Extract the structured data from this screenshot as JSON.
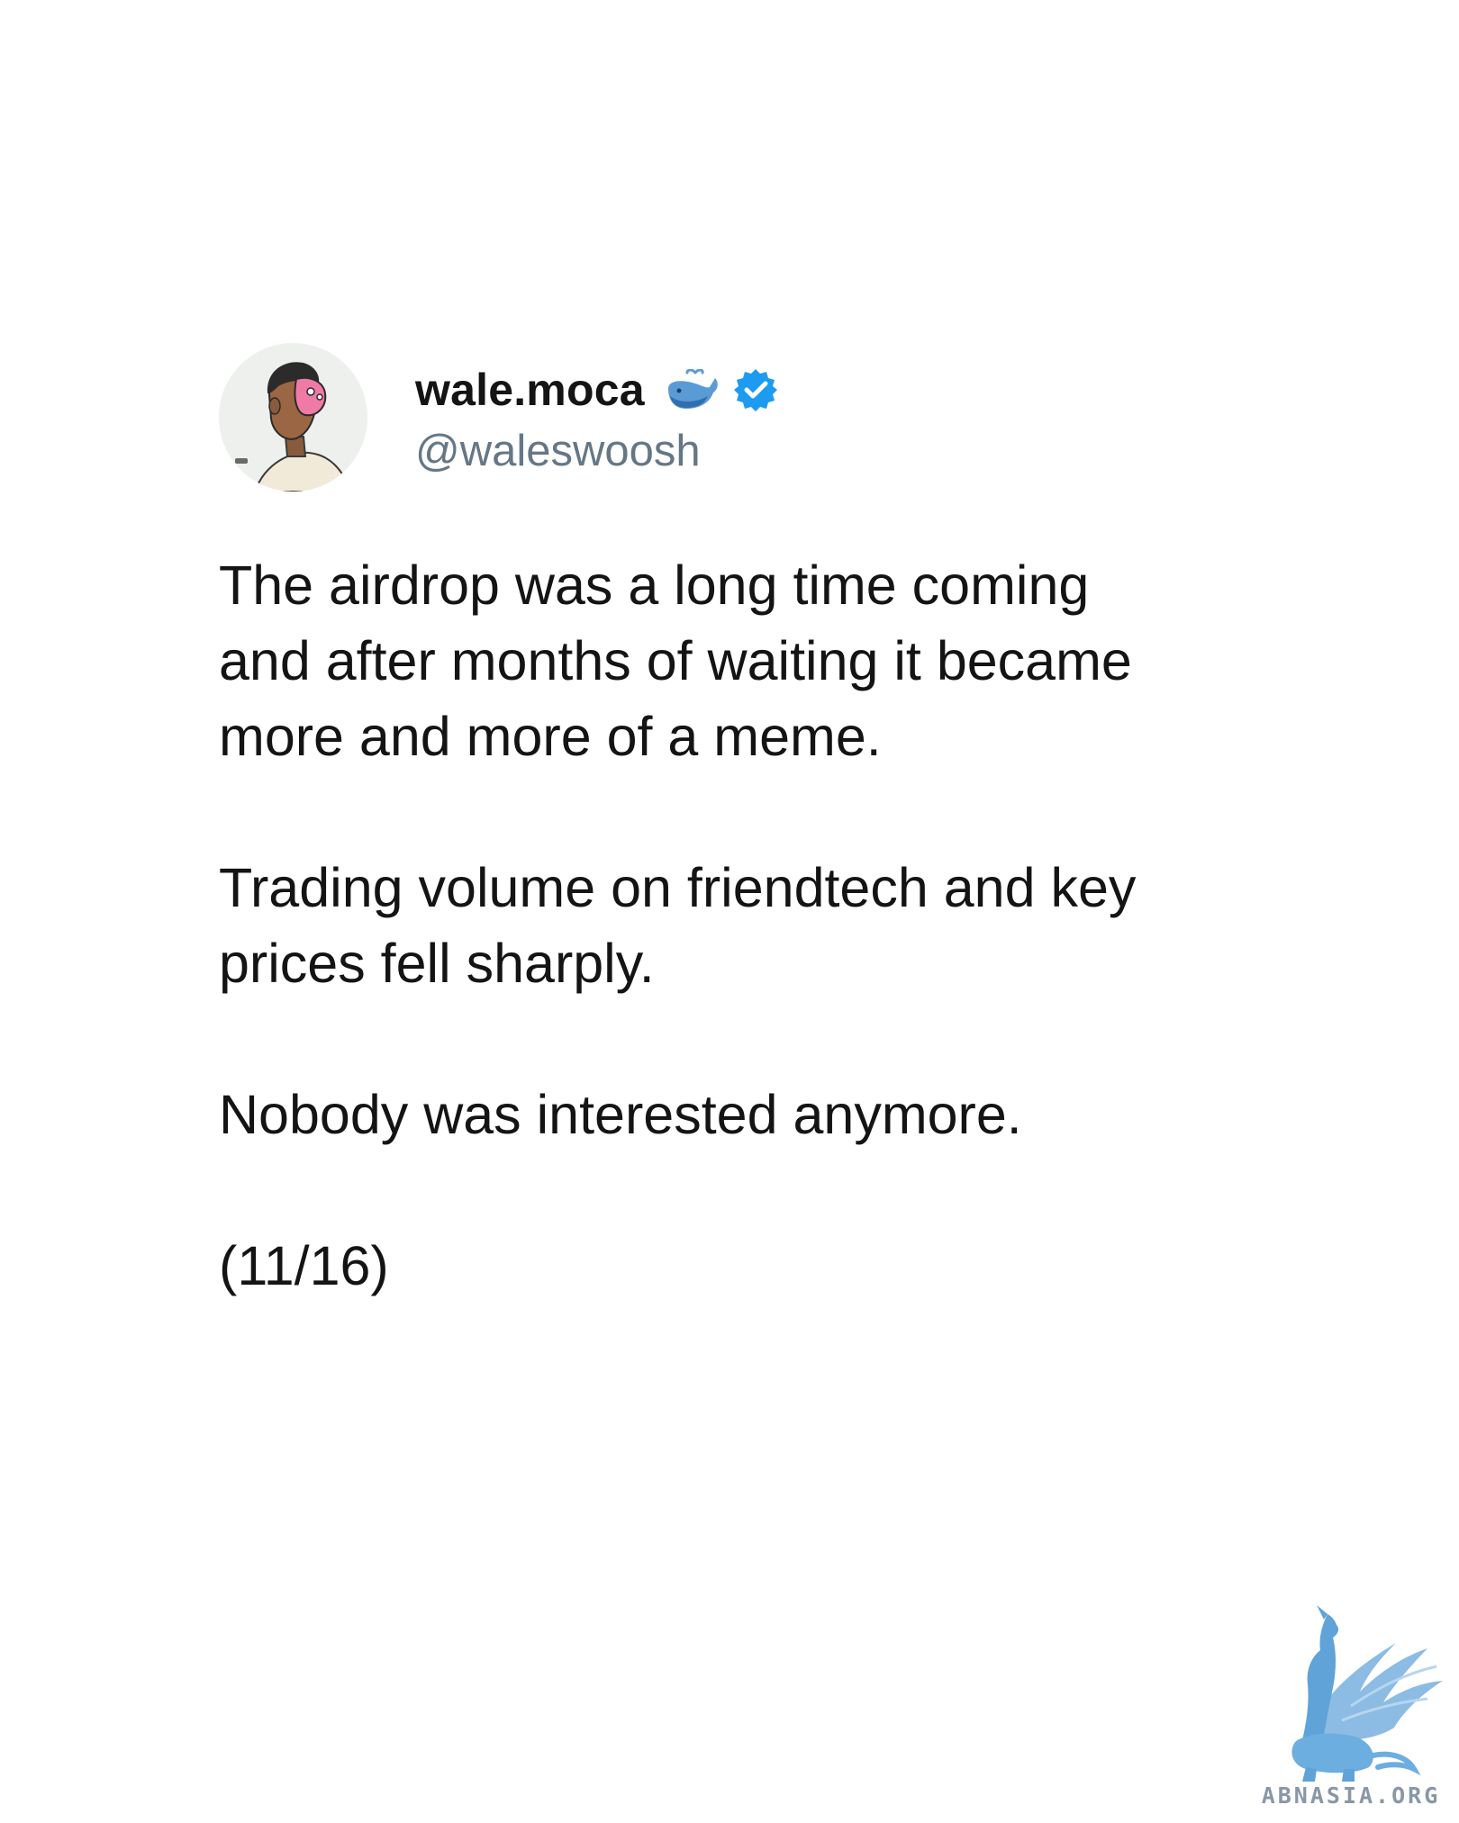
{
  "author": {
    "display_name": "wale.moca",
    "handle": "@waleswoosh",
    "avatar": "avatar",
    "badges": [
      "whale-icon",
      "verified-badge-icon"
    ],
    "verified_color": "#1D9BF0",
    "whale_color": "#5B9BD5"
  },
  "tweet": {
    "paragraphs": [
      "The airdrop was a long time coming\nand after months of waiting it became\nmore and more of a meme.",
      "Trading volume on friendtech and key\nprices fell sharply.",
      "Nobody was interested anymore.",
      "(11/16)"
    ]
  },
  "watermark": {
    "text": "ABNASIA.ORG",
    "logo": "griffin-logo-icon",
    "color": "#7FB5E0"
  }
}
